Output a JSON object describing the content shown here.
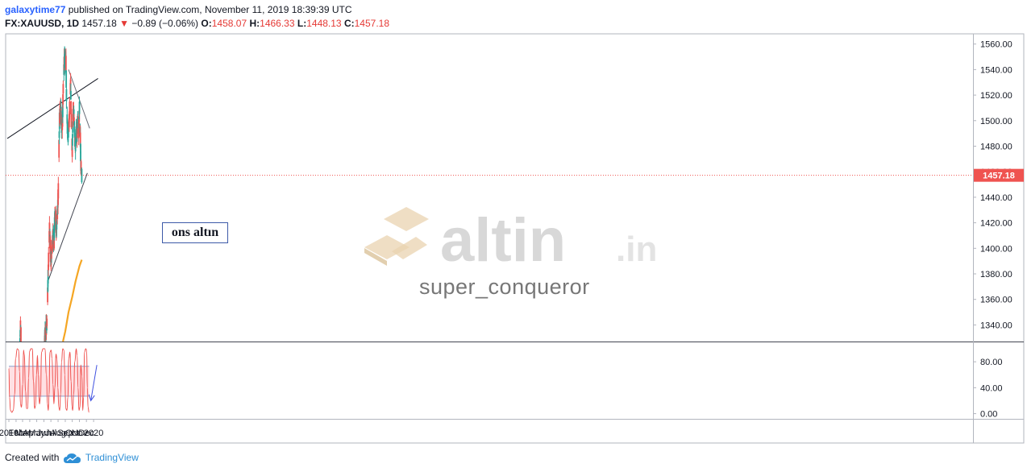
{
  "header": {
    "author": "galaxytime77",
    "published": "published on TradingView.com, November 11, 2019 18:39:39 UTC",
    "symbol": "FX:XAUUSD, 1D",
    "last": "1457.18",
    "change": "−0.89 (−0.06%)",
    "open_label": "O:",
    "open": "1458.07",
    "high_label": "H:",
    "high": "1466.33",
    "low_label": "L:",
    "low": "1448.13",
    "close_label": "C:",
    "close": "1457.18"
  },
  "annotation": {
    "label": "ons altın"
  },
  "watermark": {
    "brand": "altin.in",
    "user": "super_conqueror"
  },
  "footer": {
    "created": "Created with",
    "brand": "TradingView"
  },
  "colors": {
    "up": "#26a69a",
    "down": "#ef5350",
    "ma": "#f5a623",
    "osc": "#ef5350",
    "band": "#ffe0e3",
    "price_tag": "#ef5350"
  },
  "chart_data": [
    {
      "type": "candlestick",
      "symbol": "FX:XAUUSD",
      "timeframe": "1D",
      "x_ticks": [
        "2019",
        "Feb",
        "Mar",
        "Apr",
        "May",
        "Jun",
        "Jul",
        "Aug",
        "Sep",
        "Oct",
        "Nov",
        "Dec",
        "2020"
      ],
      "y_ticks": [
        "1340.00",
        "1360.00",
        "1380.00",
        "1400.00",
        "1420.00",
        "1440.00",
        "1460.00",
        "1480.00",
        "1500.00",
        "1520.00",
        "1540.00",
        "1560.00"
      ],
      "ylim": [
        1327,
        1568
      ],
      "last_price": 1457.18,
      "last_price_label": "1457.18",
      "anchors": [
        [
          "2019-02-18",
          1327
        ],
        [
          "2019-02-20",
          1340
        ],
        [
          "2019-02-22",
          1332
        ],
        [
          "2019-05-31",
          1305
        ],
        [
          "2019-06-05",
          1330
        ],
        [
          "2019-06-10",
          1335
        ],
        [
          "2019-06-14",
          1342
        ],
        [
          "2019-06-20",
          1385
        ],
        [
          "2019-06-25",
          1415
        ],
        [
          "2019-07-01",
          1390
        ],
        [
          "2019-07-05",
          1400
        ],
        [
          "2019-07-10",
          1410
        ],
        [
          "2019-07-15",
          1405
        ],
        [
          "2019-07-18",
          1425
        ],
        [
          "2019-07-22",
          1425
        ],
        [
          "2019-07-25",
          1415
        ],
        [
          "2019-07-30",
          1430
        ],
        [
          "2019-08-02",
          1445
        ],
        [
          "2019-08-07",
          1500
        ],
        [
          "2019-08-12",
          1510
        ],
        [
          "2019-08-16",
          1495
        ],
        [
          "2019-08-20",
          1500
        ],
        [
          "2019-08-23",
          1525
        ],
        [
          "2019-08-27",
          1545
        ],
        [
          "2019-09-02",
          1550
        ],
        [
          "2019-09-04",
          1545
        ],
        [
          "2019-09-06",
          1520
        ],
        [
          "2019-09-10",
          1495
        ],
        [
          "2019-09-13",
          1490
        ],
        [
          "2019-09-18",
          1500
        ],
        [
          "2019-09-24",
          1530
        ],
        [
          "2019-09-27",
          1500
        ],
        [
          "2019-10-01",
          1475
        ],
        [
          "2019-10-04",
          1505
        ],
        [
          "2019-10-08",
          1505
        ],
        [
          "2019-10-11",
          1490
        ],
        [
          "2019-10-15",
          1480
        ],
        [
          "2019-10-18",
          1490
        ],
        [
          "2019-10-22",
          1490
        ],
        [
          "2019-10-25",
          1500
        ],
        [
          "2019-10-29",
          1490
        ],
        [
          "2019-11-01",
          1510
        ],
        [
          "2019-11-05",
          1485
        ],
        [
          "2019-11-07",
          1465
        ],
        [
          "2019-11-11",
          1457
        ]
      ],
      "moving_average": [
        [
          "2019-08-22",
          1327
        ],
        [
          "2019-09-01",
          1335
        ],
        [
          "2019-09-15",
          1350
        ],
        [
          "2019-10-01",
          1362
        ],
        [
          "2019-10-15",
          1374
        ],
        [
          "2019-11-01",
          1386
        ],
        [
          "2019-11-11",
          1391
        ]
      ],
      "trendlines": [
        {
          "from": [
            "2018-12-25",
            1486
          ],
          "to": [
            "2020-01-20",
            1533
          ]
        },
        {
          "from": [
            "2019-06-20",
            1375
          ],
          "to": [
            "2019-12-05",
            1459
          ]
        },
        {
          "from": [
            "2019-09-15",
            1540
          ],
          "to": [
            "2019-12-15",
            1494
          ]
        }
      ]
    },
    {
      "type": "line",
      "name": "oscillator",
      "y_ticks": [
        "0.00",
        "40.00",
        "80.00"
      ],
      "ylim": [
        -8,
        110
      ],
      "band": [
        27,
        73
      ],
      "points": [
        [
          "2019-01-01",
          70
        ],
        [
          "2019-01-04",
          25
        ],
        [
          "2019-01-08",
          5
        ],
        [
          "2019-01-14",
          2
        ],
        [
          "2019-01-20",
          5
        ],
        [
          "2019-01-26",
          30
        ],
        [
          "2019-01-30",
          85
        ],
        [
          "2019-02-06",
          100
        ],
        [
          "2019-02-12",
          98
        ],
        [
          "2019-02-16",
          65
        ],
        [
          "2019-02-20",
          15
        ],
        [
          "2019-02-24",
          10
        ],
        [
          "2019-03-02",
          45
        ],
        [
          "2019-03-05",
          98
        ],
        [
          "2019-03-08",
          92
        ],
        [
          "2019-03-14",
          35
        ],
        [
          "2019-03-18",
          8
        ],
        [
          "2019-03-23",
          8
        ],
        [
          "2019-03-27",
          55
        ],
        [
          "2019-03-31",
          96
        ],
        [
          "2019-04-06",
          100
        ],
        [
          "2019-04-12",
          100
        ],
        [
          "2019-04-17",
          50
        ],
        [
          "2019-04-22",
          8
        ],
        [
          "2019-04-26",
          12
        ],
        [
          "2019-04-30",
          60
        ],
        [
          "2019-05-04",
          90
        ],
        [
          "2019-05-08",
          60
        ],
        [
          "2019-05-13",
          15
        ],
        [
          "2019-05-17",
          25
        ],
        [
          "2019-05-22",
          95
        ],
        [
          "2019-05-28",
          100
        ],
        [
          "2019-06-05",
          100
        ],
        [
          "2019-06-12",
          60
        ],
        [
          "2019-06-16",
          15
        ],
        [
          "2019-06-20",
          5
        ],
        [
          "2019-06-23",
          30
        ],
        [
          "2019-06-27",
          95
        ],
        [
          "2019-07-02",
          98
        ],
        [
          "2019-07-06",
          85
        ],
        [
          "2019-07-10",
          45
        ],
        [
          "2019-07-14",
          15
        ],
        [
          "2019-07-18",
          40
        ],
        [
          "2019-07-23",
          92
        ],
        [
          "2019-07-27",
          85
        ],
        [
          "2019-07-31",
          40
        ],
        [
          "2019-08-04",
          10
        ],
        [
          "2019-08-08",
          5
        ],
        [
          "2019-08-12",
          30
        ],
        [
          "2019-08-16",
          80
        ],
        [
          "2019-08-21",
          100
        ],
        [
          "2019-08-26",
          98
        ],
        [
          "2019-08-30",
          60
        ],
        [
          "2019-09-03",
          8
        ],
        [
          "2019-09-08",
          5
        ],
        [
          "2019-09-12",
          25
        ],
        [
          "2019-09-16",
          85
        ],
        [
          "2019-09-21",
          95
        ],
        [
          "2019-09-26",
          50
        ],
        [
          "2019-09-30",
          10
        ],
        [
          "2019-10-03",
          5
        ],
        [
          "2019-10-07",
          30
        ],
        [
          "2019-10-12",
          80
        ],
        [
          "2019-10-18",
          100
        ],
        [
          "2019-10-22",
          90
        ],
        [
          "2019-10-26",
          40
        ],
        [
          "2019-10-30",
          5
        ],
        [
          "2019-11-03",
          10
        ],
        [
          "2019-11-07",
          75
        ],
        [
          "2019-11-12",
          58
        ],
        [
          "2019-11-15",
          5
        ],
        [
          "2019-11-19",
          25
        ],
        [
          "2019-11-23",
          95
        ],
        [
          "2019-11-28",
          100
        ],
        [
          "2019-12-02",
          98
        ],
        [
          "2019-12-05",
          40
        ],
        [
          "2019-12-08",
          10
        ],
        [
          "2019-12-12",
          2
        ]
      ],
      "arrow": {
        "from": [
          "2020-01-15",
          75
        ],
        "to": [
          "2019-12-20",
          20
        ]
      }
    }
  ]
}
